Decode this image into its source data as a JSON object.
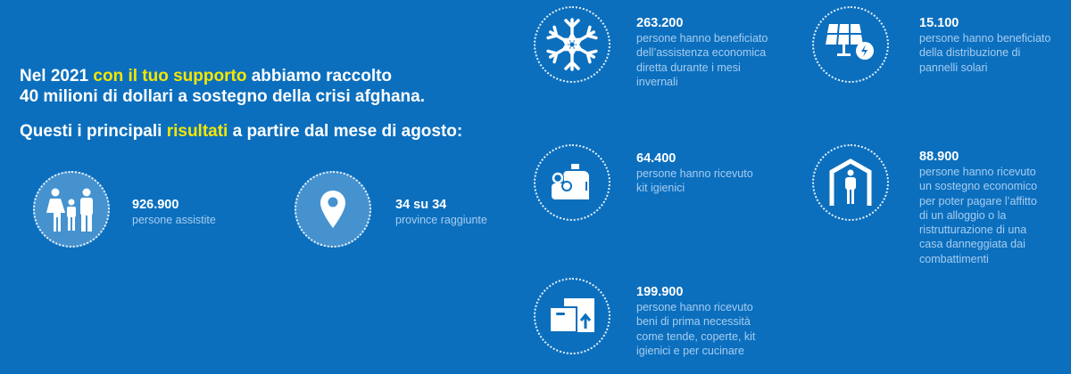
{
  "headline": {
    "line1_a": "Nel 2021 ",
    "line1_hl": "con il tuo supporto",
    "line1_b": " abbiamo raccolto",
    "line2": "40 milioni di dollari a sostegno della crisi afghana.",
    "line3_a": "Questi i principali ",
    "line3_hl": "risultati",
    "line3_b": " a partire dal mese di agosto:"
  },
  "colors": {
    "background": "#0b6fbe",
    "highlight": "#f7e600",
    "description": "#a8cdef",
    "icon_fill": "#4592cf"
  },
  "stats": [
    {
      "icon": "family-icon",
      "number": "926.900",
      "lines": [
        "persone assistite"
      ]
    },
    {
      "icon": "location-pin-icon",
      "number": "34 su 34",
      "lines": [
        "province raggiunte"
      ]
    },
    {
      "icon": "snowflake-icon",
      "number": "263.200",
      "lines": [
        "persone hanno beneficiato",
        "dell’assistenza economica",
        "diretta durante i mesi",
        "invernali"
      ]
    },
    {
      "icon": "solar-panel-icon",
      "number": "15.100",
      "lines": [
        "persone hanno beneficiato",
        "della distribuzione di",
        "pannelli solari"
      ]
    },
    {
      "icon": "hygiene-kit-icon",
      "number": "64.400",
      "lines": [
        "persone hanno ricevuto",
        "kit igienici"
      ]
    },
    {
      "icon": "shelter-icon",
      "number": "88.900",
      "lines": [
        "persone hanno ricevuto",
        "un sostegno economico",
        "per poter pagare l’affitto",
        "di un alloggio o la",
        "ristrutturazione di una",
        "casa danneggiata dai",
        "combattimenti"
      ]
    },
    {
      "icon": "boxes-icon",
      "number": "199.900",
      "lines": [
        "persone hanno ricevuto",
        "beni di prima necessità",
        "come tende, coperte, kit",
        "igienici e per cucinare"
      ]
    }
  ]
}
